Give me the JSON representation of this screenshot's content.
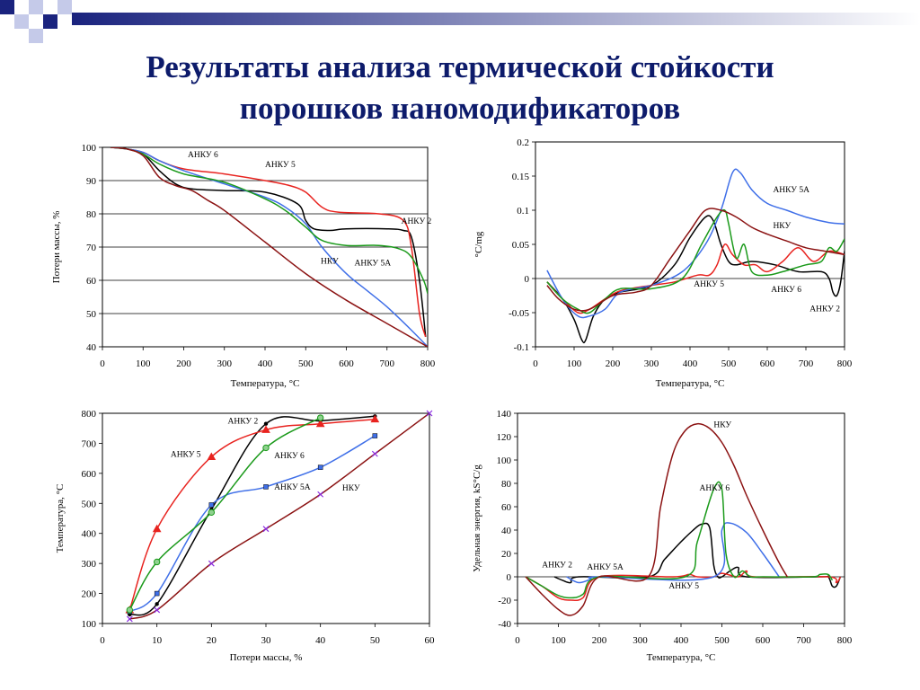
{
  "title": {
    "line1": "Результаты анализа термической стойкости",
    "line2": "порошков наномодификаторов"
  },
  "colors": {
    "title": "#0d1b6b",
    "deco_dark": "#1a237e",
    "deco_light": "#c5cae9",
    "АНКУ 2": "#000000",
    "АНКУ 5": "#e8231f",
    "АНКУ 5А": "#3f6fe8",
    "АНКУ 6": "#1b9a1b",
    "НКУ": "#8b1212"
  },
  "chart_data": [
    {
      "id": "tga",
      "type": "line",
      "title": "",
      "xlabel": "Температура, °С",
      "ylabel": "Потери массы, %",
      "xlim": [
        0,
        800
      ],
      "ylim": [
        40,
        100
      ],
      "xticks": [
        0,
        100,
        200,
        300,
        400,
        500,
        600,
        700,
        800
      ],
      "yticks": [
        40,
        50,
        60,
        70,
        80,
        90,
        100
      ],
      "grid": "horizontal",
      "annotations": [
        {
          "text": "АНКУ 6",
          "x": 210,
          "y": 97
        },
        {
          "text": "АНКУ 5",
          "x": 400,
          "y": 94
        },
        {
          "text": "АНКУ 2",
          "x": 735,
          "y": 77
        },
        {
          "text": "НКУ",
          "x": 537,
          "y": 65
        },
        {
          "text": "АНКУ 5А",
          "x": 620,
          "y": 64.5
        }
      ],
      "series": [
        {
          "name": "АНКУ 2",
          "x": [
            20,
            60,
            100,
            140,
            180,
            220,
            300,
            400,
            480,
            500,
            520,
            560,
            600,
            700,
            740,
            760,
            780,
            795
          ],
          "y": [
            100,
            99.5,
            98,
            93,
            89,
            87.5,
            87,
            86.5,
            83,
            78,
            75.5,
            75,
            75.5,
            75.5,
            75,
            73,
            60,
            43
          ]
        },
        {
          "name": "АНКУ 5",
          "x": [
            20,
            60,
            100,
            140,
            200,
            300,
            400,
            460,
            500,
            540,
            580,
            680,
            740,
            760,
            780,
            795
          ],
          "y": [
            100,
            99.5,
            98.5,
            96,
            93.5,
            92,
            90,
            88.5,
            86.5,
            82,
            80.5,
            80,
            78,
            70,
            50,
            43
          ]
        },
        {
          "name": "АНКУ 5А",
          "x": [
            20,
            60,
            100,
            140,
            200,
            300,
            400,
            450,
            500,
            540,
            600,
            650,
            700,
            760,
            800
          ],
          "y": [
            100,
            99.5,
            98.5,
            96,
            93,
            89,
            85,
            82,
            77,
            70,
            62,
            57,
            52,
            45,
            40
          ]
        },
        {
          "name": "АНКУ 6",
          "x": [
            20,
            60,
            100,
            140,
            200,
            300,
            400,
            450,
            500,
            540,
            600,
            680,
            730,
            760,
            790,
            800
          ],
          "y": [
            100,
            99.5,
            98,
            95,
            92,
            89.5,
            84.5,
            81,
            76,
            72,
            70.5,
            70.5,
            69.5,
            67,
            60,
            56
          ]
        },
        {
          "name": "НКУ",
          "x": [
            20,
            60,
            100,
            140,
            180,
            220,
            260,
            300,
            400,
            500,
            600,
            700,
            800
          ],
          "y": [
            100,
            99.5,
            97.5,
            91,
            88.5,
            87,
            84,
            81,
            71.5,
            62,
            54,
            47,
            40
          ]
        }
      ]
    },
    {
      "id": "dta",
      "type": "line",
      "title": "",
      "xlabel": "Температура, °С",
      "ylabel": "°С/mg",
      "xlim": [
        0,
        800
      ],
      "ylim": [
        -0.1,
        0.2
      ],
      "xticks": [
        0,
        100,
        200,
        300,
        400,
        500,
        600,
        700,
        800
      ],
      "yticks": [
        -0.1,
        -0.05,
        0,
        0.05,
        0.1,
        0.15,
        0.2
      ],
      "grid": "none",
      "annotations": [
        {
          "text": "АНКУ 5А",
          "x": 615,
          "y": 0.126
        },
        {
          "text": "НКУ",
          "x": 615,
          "y": 0.074
        },
        {
          "text": "АНКУ 5",
          "x": 410,
          "y": -0.012
        },
        {
          "text": "АНКУ 6",
          "x": 610,
          "y": -0.02
        },
        {
          "text": "АНКУ 2",
          "x": 710,
          "y": -0.048
        }
      ],
      "series": [
        {
          "name": "АНКУ 2",
          "x": [
            30,
            70,
            100,
            120,
            130,
            150,
            180,
            220,
            300,
            360,
            400,
            440,
            460,
            480,
            500,
            520,
            560,
            620,
            680,
            740,
            760,
            770,
            780,
            790,
            800
          ],
          "y": [
            -0.005,
            -0.03,
            -0.06,
            -0.09,
            -0.09,
            -0.055,
            -0.03,
            -0.02,
            -0.01,
            0.02,
            0.06,
            0.09,
            0.085,
            0.05,
            0.025,
            0.02,
            0.025,
            0.02,
            0.01,
            0.01,
            0.0,
            -0.02,
            -0.025,
            -0.005,
            0.04
          ]
        },
        {
          "name": "АНКУ 5",
          "x": [
            30,
            70,
            110,
            140,
            180,
            220,
            300,
            360,
            420,
            450,
            470,
            490,
            510,
            540,
            570,
            600,
            640,
            680,
            720,
            760,
            800
          ],
          "y": [
            -0.005,
            -0.03,
            -0.05,
            -0.045,
            -0.03,
            -0.018,
            -0.01,
            -0.005,
            0.005,
            0.005,
            0.02,
            0.05,
            0.035,
            0.02,
            0.02,
            0.01,
            0.025,
            0.045,
            0.025,
            0.04,
            0.035
          ]
        },
        {
          "name": "АНКУ 5А",
          "x": [
            30,
            70,
            110,
            140,
            180,
            220,
            300,
            380,
            440,
            480,
            510,
            530,
            560,
            600,
            650,
            700,
            760,
            800
          ],
          "y": [
            0.012,
            -0.03,
            -0.055,
            -0.055,
            -0.045,
            -0.02,
            -0.01,
            0.01,
            0.05,
            0.1,
            0.155,
            0.155,
            0.13,
            0.11,
            0.1,
            0.09,
            0.082,
            0.08
          ]
        },
        {
          "name": "АНКУ 6",
          "x": [
            30,
            70,
            110,
            140,
            180,
            220,
            300,
            380,
            430,
            470,
            490,
            500,
            520,
            540,
            560,
            600,
            640,
            700,
            740,
            760,
            780,
            800
          ],
          "y": [
            -0.005,
            -0.03,
            -0.045,
            -0.05,
            -0.03,
            -0.015,
            -0.015,
            0.0,
            0.05,
            0.09,
            0.1,
            0.08,
            0.03,
            0.05,
            0.01,
            0.005,
            0.01,
            0.02,
            0.025,
            0.045,
            0.04,
            0.058
          ]
        },
        {
          "name": "НКУ",
          "x": [
            30,
            60,
            100,
            140,
            200,
            260,
            300,
            350,
            400,
            440,
            480,
            520,
            560,
            600,
            650,
            700,
            750,
            800
          ],
          "y": [
            -0.01,
            -0.03,
            -0.045,
            -0.045,
            -0.025,
            -0.02,
            -0.01,
            0.03,
            0.07,
            0.1,
            0.1,
            0.09,
            0.075,
            0.065,
            0.055,
            0.045,
            0.04,
            0.035
          ]
        }
      ]
    },
    {
      "id": "temp_vs_loss",
      "type": "line",
      "title": "",
      "xlabel": "Потери массы, %",
      "ylabel": "Температура, °С",
      "xlim": [
        0,
        60
      ],
      "ylim": [
        100,
        800
      ],
      "xticks": [
        0,
        10,
        20,
        30,
        40,
        50,
        60
      ],
      "yticks": [
        100,
        200,
        300,
        400,
        500,
        600,
        700,
        800
      ],
      "grid": "none",
      "annotations": [
        {
          "text": "АНКУ 2",
          "x": 23,
          "y": 765
        },
        {
          "text": "АНКУ 5",
          "x": 12.5,
          "y": 655
        },
        {
          "text": "АНКУ 6",
          "x": 31.5,
          "y": 650
        },
        {
          "text": "АНКУ 5А",
          "x": 31.5,
          "y": 545
        },
        {
          "text": "НКУ",
          "x": 44,
          "y": 542
        }
      ],
      "series": [
        {
          "name": "АНКУ 2",
          "marker": "dot",
          "x": [
            5,
            10,
            20,
            30,
            40,
            50
          ],
          "y": [
            130,
            165,
            480,
            765,
            775,
            790
          ]
        },
        {
          "name": "АНКУ 5",
          "marker": "triangle",
          "x": [
            5,
            10,
            20,
            30,
            40,
            50
          ],
          "y": [
            145,
            415,
            655,
            745,
            765,
            780
          ]
        },
        {
          "name": "АНКУ 5А",
          "marker": "square",
          "x": [
            5,
            10,
            20,
            30,
            40,
            50
          ],
          "y": [
            140,
            200,
            495,
            555,
            620,
            725
          ]
        },
        {
          "name": "АНКУ 6",
          "marker": "circle",
          "x": [
            5,
            10,
            20,
            30,
            40
          ],
          "y": [
            145,
            305,
            470,
            685,
            785
          ]
        },
        {
          "name": "НКУ",
          "marker": "cross",
          "x": [
            5,
            10,
            20,
            30,
            40,
            50,
            60
          ],
          "y": [
            115,
            145,
            300,
            415,
            530,
            665,
            800
          ]
        }
      ]
    },
    {
      "id": "specific_energy",
      "type": "line",
      "title": "",
      "xlabel": "Температура, °С",
      "ylabel": "Удельная энергия, kS°C/g",
      "xlim": [
        0,
        800
      ],
      "ylim": [
        -40,
        140
      ],
      "xticks": [
        0,
        100,
        200,
        300,
        400,
        500,
        600,
        700,
        800
      ],
      "yticks": [
        -40,
        -20,
        0,
        20,
        40,
        60,
        80,
        100,
        120,
        140
      ],
      "grid": "none",
      "annotations": [
        {
          "text": "НКУ",
          "x": 480,
          "y": 128
        },
        {
          "text": "АНКУ 6",
          "x": 445,
          "y": 74
        },
        {
          "text": "АНКУ 2",
          "x": 60,
          "y": 8
        },
        {
          "text": "АНКУ 5А",
          "x": 170,
          "y": 6
        },
        {
          "text": "АНКУ 5",
          "x": 370,
          "y": -10
        }
      ],
      "series": [
        {
          "name": "АНКУ 2",
          "x": [
            90,
            110,
            130,
            150,
            320,
            360,
            400,
            430,
            450,
            470,
            480,
            490,
            500,
            520,
            540,
            560,
            740,
            760,
            770,
            780,
            790
          ],
          "y": [
            0,
            -3,
            -5,
            0,
            0,
            15,
            30,
            40,
            45,
            42,
            10,
            0,
            0,
            5,
            8,
            0,
            0,
            0,
            -8,
            -8,
            0
          ]
        },
        {
          "name": "АНКУ 5",
          "x": [
            20,
            60,
            100,
            130,
            160,
            200,
            380,
            420,
            440,
            480,
            500,
            540,
            560,
            580,
            760,
            780,
            790
          ],
          "y": [
            0,
            -8,
            -18,
            -20,
            -18,
            0,
            0,
            2,
            0,
            0,
            3,
            0,
            5,
            0,
            0,
            -5,
            0
          ]
        },
        {
          "name": "АНКУ 5А",
          "x": [
            120,
            150,
            180,
            200,
            480,
            500,
            520,
            560,
            600,
            640
          ],
          "y": [
            0,
            -5,
            -2,
            0,
            0,
            40,
            46,
            38,
            20,
            0
          ]
        },
        {
          "name": "АНКУ 6",
          "x": [
            20,
            60,
            100,
            130,
            160,
            200,
            410,
            440,
            480,
            500,
            510,
            530,
            550,
            570,
            600,
            720,
            740,
            760,
            770
          ],
          "y": [
            0,
            -8,
            -16,
            -18,
            -15,
            0,
            0,
            30,
            75,
            75,
            20,
            0,
            5,
            0,
            0,
            0,
            2,
            2,
            -3
          ]
        },
        {
          "name": "НКУ",
          "x": [
            20,
            60,
            100,
            130,
            160,
            200,
            320,
            350,
            380,
            410,
            440,
            470,
            500,
            530,
            560,
            600,
            640,
            660
          ],
          "y": [
            0,
            -15,
            -28,
            -33,
            -25,
            0,
            0,
            60,
            105,
            125,
            131,
            127,
            115,
            95,
            70,
            40,
            12,
            0
          ]
        }
      ]
    }
  ]
}
